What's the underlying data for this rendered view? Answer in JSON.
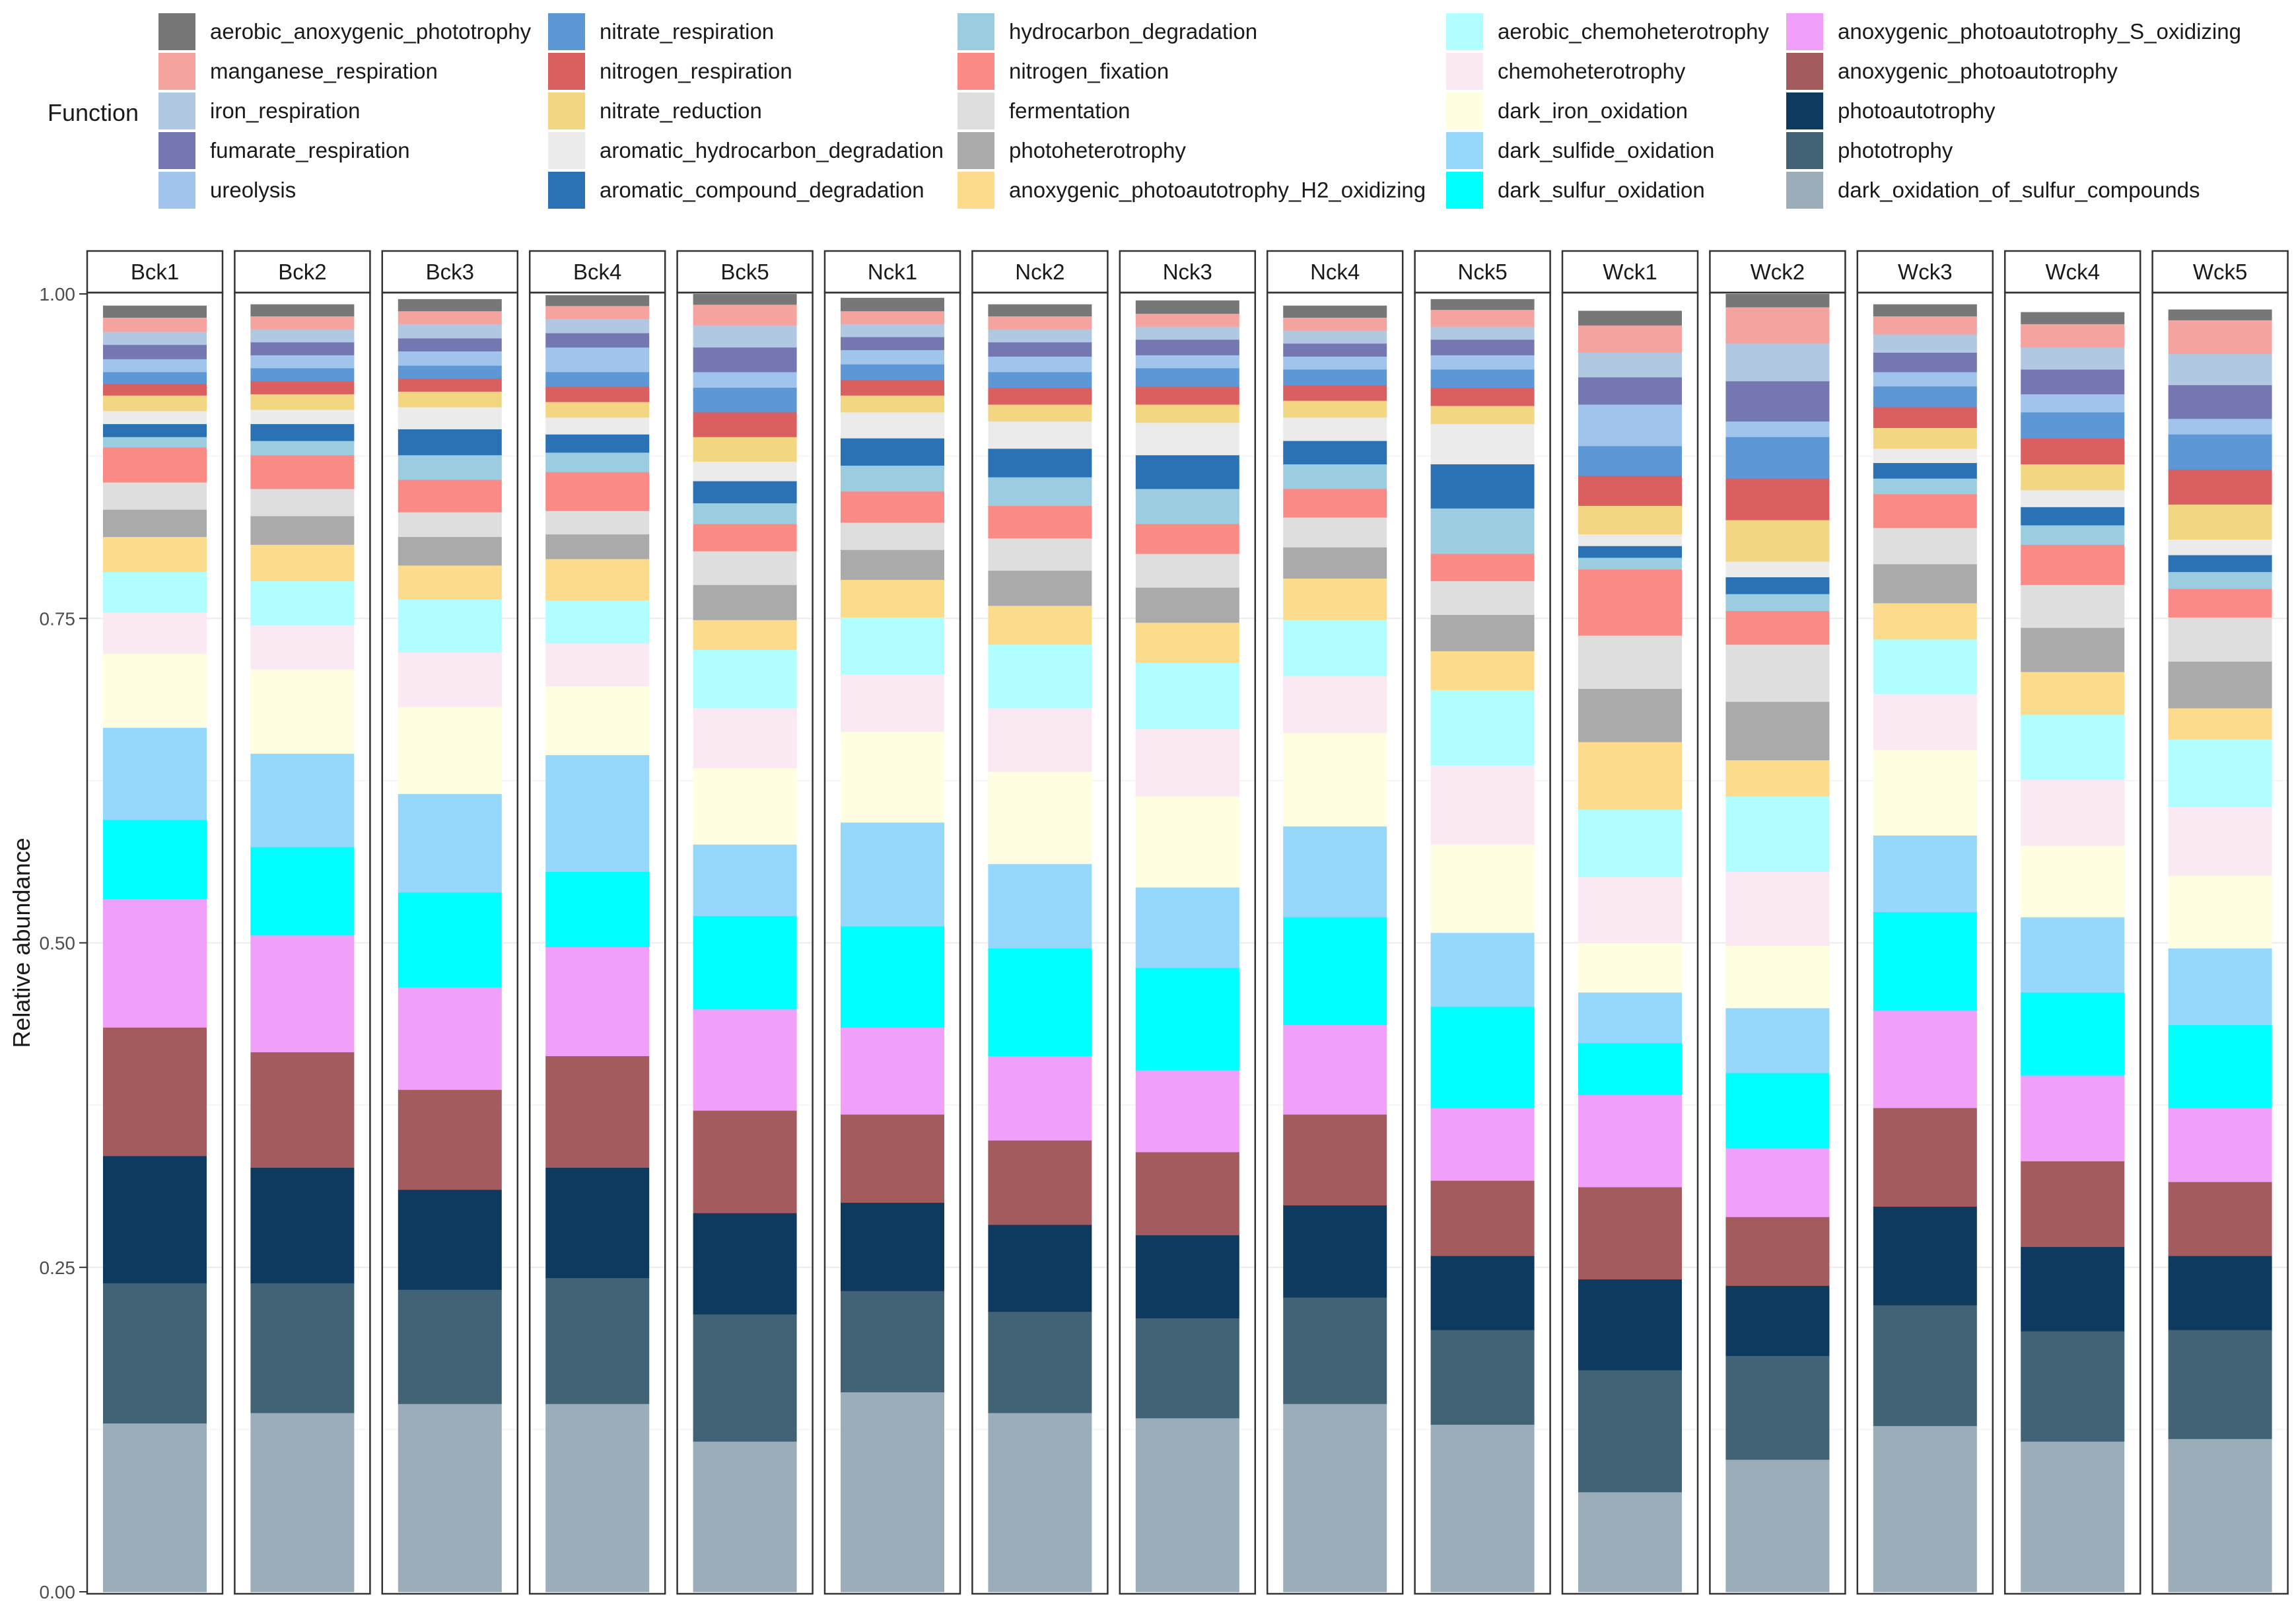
{
  "chart_data": {
    "type": "bar",
    "stacked": true,
    "legend_title": "Function",
    "ylabel": "Relative abundance",
    "xlabel": "",
    "ylim": [
      0,
      1
    ],
    "yticks": [
      "0.00",
      "0.25",
      "0.50",
      "0.75",
      "1.00"
    ],
    "categories": [
      "Bck1",
      "Bck2",
      "Bck3",
      "Bck4",
      "Bck5",
      "Nck1",
      "Nck2",
      "Nck3",
      "Nck4",
      "Nck5",
      "Wck1",
      "Wck2",
      "Wck3",
      "Wck4",
      "Wck5"
    ],
    "legend_columns": [
      [
        "aerobic_anoxygenic_phototrophy",
        "manganese_respiration",
        "iron_respiration",
        "fumarate_respiration",
        "ureolysis"
      ],
      [
        "nitrate_respiration",
        "nitrogen_respiration",
        "nitrate_reduction",
        "aromatic_hydrocarbon_degradation",
        "aromatic_compound_degradation"
      ],
      [
        "hydrocarbon_degradation",
        "nitrogen_fixation",
        "fermentation",
        "photoheterotrophy",
        "anoxygenic_photoautotrophy_H2_oxidizing"
      ],
      [
        "aerobic_chemoheterotrophy",
        "chemoheterotrophy",
        "dark_iron_oxidation",
        "dark_sulfide_oxidation",
        "dark_sulfur_oxidation"
      ],
      [
        "anoxygenic_photoautotrophy_S_oxidizing",
        "anoxygenic_photoautotrophy",
        "photoautotrophy",
        "phototrophy",
        "dark_oxidation_of_sulfur_compounds"
      ]
    ],
    "series": [
      {
        "name": "dark_oxidation_of_sulfur_compounds",
        "color": "#9aadb8",
        "values": [
          0.13,
          0.138,
          0.145,
          0.145,
          0.116,
          0.154,
          0.138,
          0.134,
          0.145,
          0.129,
          0.077,
          0.102,
          0.128,
          0.116,
          0.118
        ]
      },
      {
        "name": "phototrophy",
        "color": "#426375",
        "values": [
          0.108,
          0.1,
          0.088,
          0.097,
          0.098,
          0.078,
          0.078,
          0.077,
          0.082,
          0.073,
          0.094,
          0.08,
          0.093,
          0.085,
          0.084
        ]
      },
      {
        "name": "photoautotrophy",
        "color": "#0f3a5f",
        "values": [
          0.098,
          0.089,
          0.077,
          0.085,
          0.078,
          0.068,
          0.067,
          0.064,
          0.071,
          0.057,
          0.07,
          0.054,
          0.076,
          0.065,
          0.057
        ]
      },
      {
        "name": "anoxygenic_photoautotrophy",
        "color": "#a35b5d",
        "values": [
          0.099,
          0.089,
          0.077,
          0.086,
          0.079,
          0.068,
          0.065,
          0.064,
          0.07,
          0.058,
          0.071,
          0.053,
          0.076,
          0.066,
          0.057
        ]
      },
      {
        "name": "anoxygenic_photoautotrophy_S_oxidizing",
        "color": "#f0a0f8",
        "values": [
          0.099,
          0.09,
          0.079,
          0.084,
          0.078,
          0.067,
          0.065,
          0.063,
          0.069,
          0.056,
          0.071,
          0.053,
          0.075,
          0.066,
          0.057
        ]
      },
      {
        "name": "dark_sulfur_oxidation",
        "color": "#00ffff",
        "values": [
          0.061,
          0.068,
          0.073,
          0.058,
          0.072,
          0.078,
          0.083,
          0.079,
          0.083,
          0.078,
          0.04,
          0.058,
          0.076,
          0.064,
          0.064
        ]
      },
      {
        "name": "dark_sulfide_oxidation",
        "color": "#96d8fc",
        "values": [
          0.071,
          0.072,
          0.076,
          0.09,
          0.055,
          0.08,
          0.065,
          0.062,
          0.07,
          0.057,
          0.039,
          0.05,
          0.059,
          0.058,
          0.059
        ]
      },
      {
        "name": "dark_iron_oxidation",
        "color": "#fffee0",
        "values": [
          0.057,
          0.065,
          0.067,
          0.053,
          0.059,
          0.07,
          0.071,
          0.07,
          0.072,
          0.068,
          0.038,
          0.048,
          0.066,
          0.055,
          0.056
        ]
      },
      {
        "name": "chemoheterotrophy",
        "color": "#fae8f2",
        "values": [
          0.032,
          0.034,
          0.042,
          0.033,
          0.046,
          0.044,
          0.049,
          0.052,
          0.044,
          0.061,
          0.051,
          0.057,
          0.043,
          0.051,
          0.053
        ]
      },
      {
        "name": "aerobic_chemoheterotrophy",
        "color": "#b0feff",
        "values": [
          0.031,
          0.034,
          0.041,
          0.033,
          0.045,
          0.044,
          0.049,
          0.051,
          0.043,
          0.058,
          0.052,
          0.058,
          0.042,
          0.05,
          0.052
        ]
      },
      {
        "name": "anoxygenic_photoautotrophy_H2_oxidizing",
        "color": "#fcdc8c",
        "values": [
          0.027,
          0.028,
          0.026,
          0.032,
          0.023,
          0.029,
          0.03,
          0.031,
          0.032,
          0.03,
          0.052,
          0.028,
          0.028,
          0.033,
          0.024
        ]
      },
      {
        "name": "photoheterotrophy",
        "color": "#aaaaaa",
        "values": [
          0.021,
          0.022,
          0.022,
          0.019,
          0.027,
          0.023,
          0.027,
          0.027,
          0.024,
          0.028,
          0.041,
          0.045,
          0.03,
          0.034,
          0.036
        ]
      },
      {
        "name": "fermentation",
        "color": "#dedede",
        "values": [
          0.021,
          0.021,
          0.019,
          0.018,
          0.026,
          0.021,
          0.025,
          0.026,
          0.023,
          0.026,
          0.041,
          0.044,
          0.028,
          0.033,
          0.034
        ]
      },
      {
        "name": "nitrogen_fixation",
        "color": "#fa8a86",
        "values": [
          0.027,
          0.026,
          0.025,
          0.03,
          0.021,
          0.024,
          0.025,
          0.023,
          0.022,
          0.021,
          0.051,
          0.026,
          0.026,
          0.031,
          0.022
        ]
      },
      {
        "name": "hydrocarbon_degradation",
        "color": "#9ccce0",
        "values": [
          0.008,
          0.011,
          0.019,
          0.015,
          0.016,
          0.02,
          0.022,
          0.027,
          0.019,
          0.035,
          0.009,
          0.013,
          0.012,
          0.015,
          0.013
        ]
      },
      {
        "name": "aromatic_compound_degradation",
        "color": "#2a72b4",
        "values": [
          0.01,
          0.013,
          0.02,
          0.014,
          0.017,
          0.021,
          0.022,
          0.026,
          0.018,
          0.034,
          0.009,
          0.013,
          0.012,
          0.014,
          0.013
        ]
      },
      {
        "name": "aromatic_hydrocarbon_degradation",
        "color": "#ebebeb",
        "values": [
          0.01,
          0.011,
          0.017,
          0.013,
          0.015,
          0.02,
          0.021,
          0.025,
          0.018,
          0.031,
          0.009,
          0.012,
          0.011,
          0.013,
          0.012
        ]
      },
      {
        "name": "nitrate_reduction",
        "color": "#f2d682",
        "values": [
          0.012,
          0.012,
          0.012,
          0.012,
          0.019,
          0.013,
          0.013,
          0.014,
          0.013,
          0.014,
          0.022,
          0.032,
          0.016,
          0.02,
          0.027
        ]
      },
      {
        "name": "nitrogen_respiration",
        "color": "#d95f61",
        "values": [
          0.009,
          0.01,
          0.01,
          0.012,
          0.019,
          0.012,
          0.013,
          0.014,
          0.012,
          0.014,
          0.023,
          0.032,
          0.016,
          0.02,
          0.027
        ]
      },
      {
        "name": "nitrate_respiration",
        "color": "#5d97d5",
        "values": [
          0.009,
          0.01,
          0.01,
          0.011,
          0.019,
          0.012,
          0.012,
          0.014,
          0.012,
          0.014,
          0.023,
          0.032,
          0.016,
          0.02,
          0.027
        ]
      },
      {
        "name": "ureolysis",
        "color": "#a0c4ec",
        "values": [
          0.01,
          0.01,
          0.011,
          0.019,
          0.012,
          0.011,
          0.012,
          0.01,
          0.01,
          0.011,
          0.032,
          0.012,
          0.011,
          0.014,
          0.012
        ]
      },
      {
        "name": "fumarate_respiration",
        "color": "#7577b3",
        "values": [
          0.011,
          0.01,
          0.01,
          0.011,
          0.019,
          0.01,
          0.011,
          0.012,
          0.01,
          0.012,
          0.021,
          0.031,
          0.015,
          0.019,
          0.026
        ]
      },
      {
        "name": "iron_respiration",
        "color": "#b1c8e3",
        "values": [
          0.01,
          0.01,
          0.011,
          0.011,
          0.017,
          0.01,
          0.01,
          0.01,
          0.01,
          0.01,
          0.019,
          0.029,
          0.014,
          0.017,
          0.024
        ]
      },
      {
        "name": "manganese_respiration",
        "color": "#f5a39e",
        "values": [
          0.011,
          0.01,
          0.01,
          0.01,
          0.016,
          0.01,
          0.01,
          0.01,
          0.01,
          0.013,
          0.021,
          0.028,
          0.014,
          0.018,
          0.026
        ]
      },
      {
        "name": "aerobic_anoxygenic_phototrophy",
        "color": "#777777",
        "values": [
          0.009,
          0.009,
          0.009,
          0.008,
          0.008,
          0.01,
          0.009,
          0.01,
          0.009,
          0.008,
          0.011,
          0.01,
          0.009,
          0.009,
          0.008
        ]
      }
    ]
  }
}
